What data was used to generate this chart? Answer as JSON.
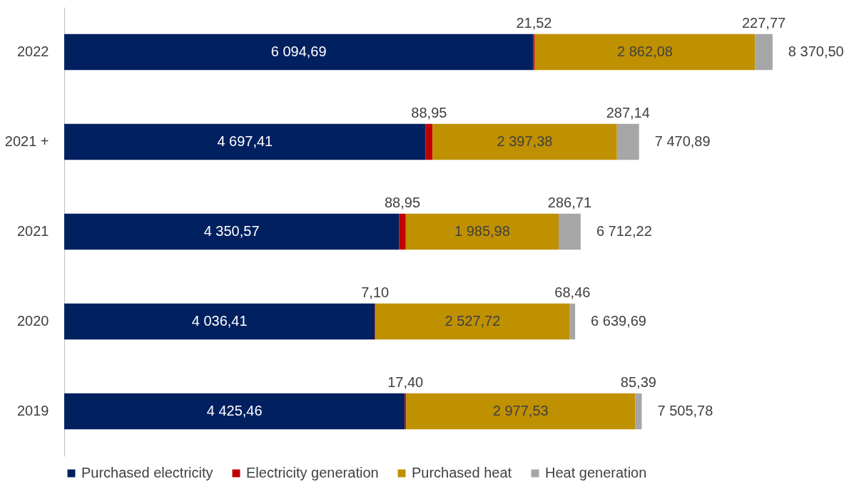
{
  "chart_data": {
    "type": "bar",
    "orientation": "horizontal",
    "stacked": true,
    "legend": "bottom",
    "grid": false,
    "categories": [
      "2022",
      "2021 +",
      "2021",
      "2020",
      "2019"
    ],
    "series": [
      {
        "name": "Purchased electricity",
        "color": "#002060",
        "values": [
          6094.69,
          4697.41,
          4350.57,
          4036.41,
          4425.46
        ],
        "value_labels": [
          "6 094,69",
          "4 697,41",
          "4 350,57",
          "4 036,41",
          "4 425,46"
        ]
      },
      {
        "name": "Electricity generation",
        "color": "#c00000",
        "values": [
          21.52,
          88.95,
          88.95,
          7.1,
          17.4
        ],
        "value_labels": [
          "21,52",
          "88,95",
          "88,95",
          "7,10",
          "17,40"
        ]
      },
      {
        "name": "Purchased heat",
        "color": "#bf9000",
        "values": [
          2862.08,
          2397.38,
          1985.98,
          2527.72,
          2977.53
        ],
        "value_labels": [
          "2 862,08",
          "2 397,38",
          "1 985,98",
          "2 527,72",
          "2 977,53"
        ]
      },
      {
        "name": "Heat generation",
        "color": "#a6a6a6",
        "values": [
          227.77,
          287.14,
          286.71,
          68.46,
          85.39
        ],
        "value_labels": [
          "227,77",
          "287,14",
          "286,71",
          "68,46",
          "85,39"
        ]
      }
    ],
    "annotations": [
      "8 370,50",
      "7 470,89",
      "6 712,22",
      "6 639,69",
      "7 505,78"
    ]
  }
}
